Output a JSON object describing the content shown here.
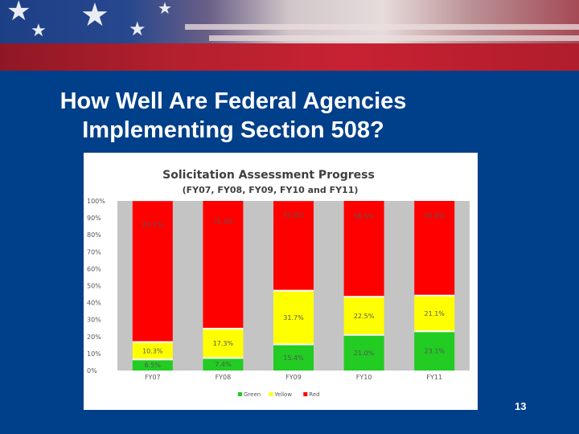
{
  "slide": {
    "title": "How Well Are Federal Agencies Implementing Section 508?",
    "page_number": "13"
  },
  "colors": {
    "background": "#003f8a",
    "green": "#22cc22",
    "yellow": "#ffff00",
    "red": "#ff0000",
    "gray_band": "#c4c4c4"
  },
  "chart_data": {
    "type": "bar",
    "stacked": true,
    "title": "Solicitation Assessment Progress",
    "subtitle": "(FY07, FY08, FY09, FY10 and FY11)",
    "categories": [
      "FY07",
      "FY08",
      "FY09",
      "FY10",
      "FY11"
    ],
    "series": [
      {
        "name": "Green",
        "color": "#22cc22",
        "values": [
          6.5,
          7.4,
          15.4,
          21.0,
          23.1
        ],
        "labels": [
          "6.5%",
          "7.4%",
          "15.4%",
          "21.0%",
          "23.1%"
        ]
      },
      {
        "name": "Yellow",
        "color": "#ffff00",
        "values": [
          10.3,
          17.3,
          31.7,
          22.5,
          21.1
        ],
        "labels": [
          "10.3%",
          "17.3%",
          "31.7%",
          "22.5%",
          "21.1%"
        ]
      },
      {
        "name": "Red",
        "color": "#ff0000",
        "values": [
          83.1,
          75.3,
          52.8,
          56.5,
          55.8
        ],
        "labels": [
          "83.1%",
          "75.3%",
          "52.8%",
          "56.5%",
          "55.8%"
        ]
      }
    ],
    "yticks": [
      "0%",
      "10%",
      "20%",
      "30%",
      "40%",
      "50%",
      "60%",
      "70%",
      "80%",
      "90%",
      "100%"
    ],
    "ylim": [
      0,
      100
    ],
    "legend_position": "bottom",
    "grid": false
  }
}
